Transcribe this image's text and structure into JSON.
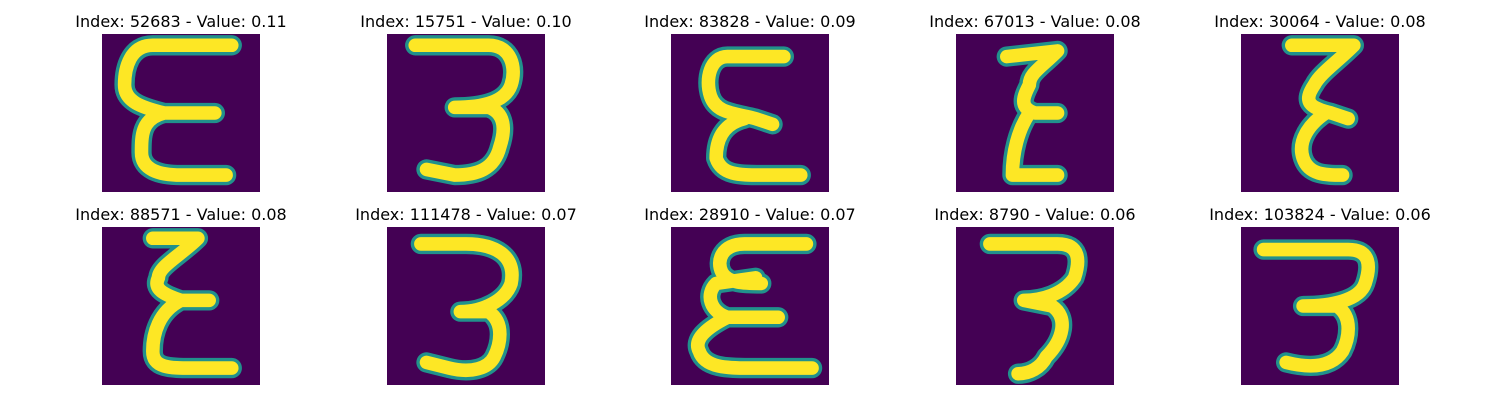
{
  "background_color": "#440154",
  "stroke_edge_color": "#21918c",
  "stroke_core_color": "#fde725",
  "panels": [
    {
      "title": "Index: 52683 - Value: 0.11",
      "glyph": "Ɛ"
    },
    {
      "title": "Index: 15751 - Value: 0.10",
      "glyph": "3"
    },
    {
      "title": "Index: 83828 - Value: 0.09",
      "glyph": "Ɛ"
    },
    {
      "title": "Index: 67013 - Value: 0.08",
      "glyph": "Ƹ"
    },
    {
      "title": "Index: 30064 - Value: 0.08",
      "glyph": "Ƹ"
    },
    {
      "title": "Index: 88571 - Value: 0.08",
      "glyph": "Ɛ"
    },
    {
      "title": "Index: 111478 - Value: 0.07",
      "glyph": "3"
    },
    {
      "title": "Index: 28910 - Value: 0.07",
      "glyph": "Ɛ"
    },
    {
      "title": "Index: 8790 - Value: 0.06",
      "glyph": "3"
    },
    {
      "title": "Index: 103824 - Value: 0.06",
      "glyph": "3"
    }
  ]
}
